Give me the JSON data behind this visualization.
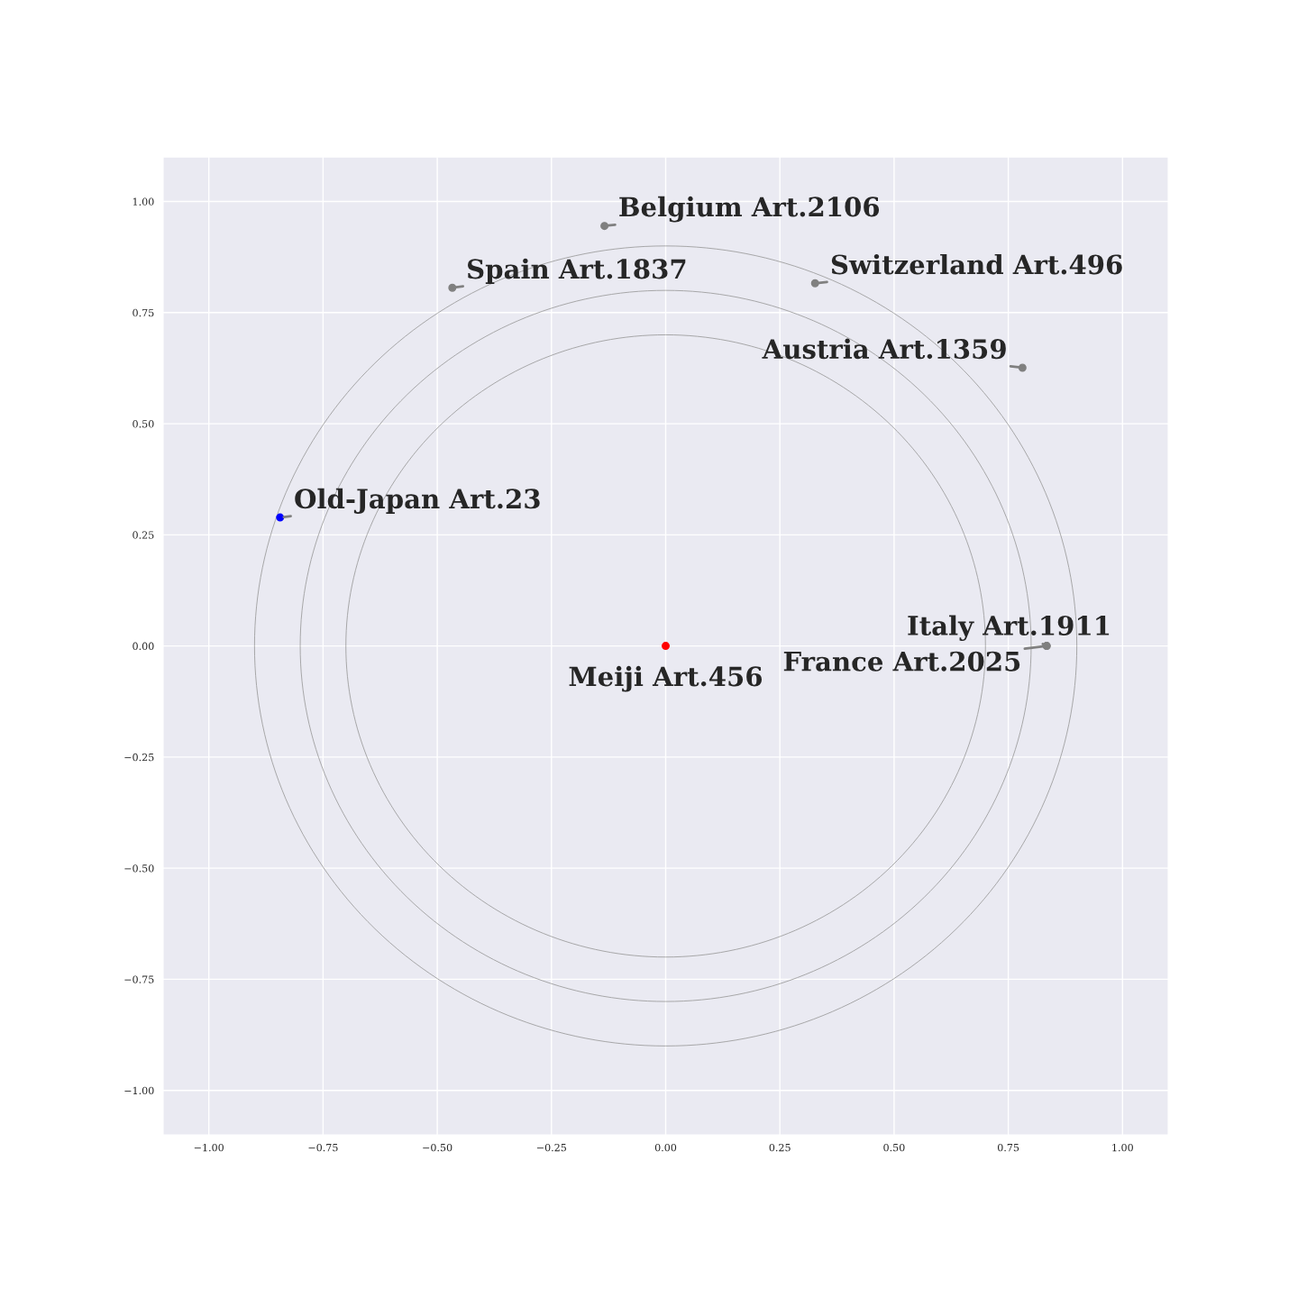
{
  "chart_data": {
    "type": "scatter",
    "grid": true,
    "marker": "circle",
    "xlim": [
      -1.1,
      1.1
    ],
    "ylim": [
      -1.1,
      1.1
    ],
    "xticks": [
      {
        "value": -1,
        "label": "−1.00"
      },
      {
        "value": -0.75,
        "label": "−0.75"
      },
      {
        "value": -0.5,
        "label": "−0.50"
      },
      {
        "value": -0.25,
        "label": "−0.25"
      },
      {
        "value": 0,
        "label": "0.00"
      },
      {
        "value": 0.25,
        "label": "0.25"
      },
      {
        "value": 0.5,
        "label": "0.50"
      },
      {
        "value": 0.75,
        "label": "0.75"
      },
      {
        "value": 1,
        "label": "1.00"
      }
    ],
    "yticks": [
      {
        "value": -1,
        "label": "−1.00"
      },
      {
        "value": -0.75,
        "label": "−0.75"
      },
      {
        "value": -0.5,
        "label": "−0.50"
      },
      {
        "value": -0.25,
        "label": "−0.25"
      },
      {
        "value": 0,
        "label": "0.00"
      },
      {
        "value": 0.25,
        "label": "0.25"
      },
      {
        "value": 0.5,
        "label": "0.50"
      },
      {
        "value": 0.75,
        "label": "0.75"
      },
      {
        "value": 1,
        "label": "1.00"
      }
    ],
    "series": [
      {
        "x": [
          0,
          -0.844,
          -0.467,
          -0.134,
          0.327,
          0.781,
          0.834,
          0.834
        ],
        "values": [
          0,
          0.289,
          0.806,
          0.945,
          0.816,
          0.626,
          0,
          0
        ],
        "colors": [
          "#ff0000",
          "#0000ff",
          "#808080",
          "#808080",
          "#808080",
          "#808080",
          "#808080",
          "#808080"
        ]
      }
    ],
    "annotations": [
      {
        "text": "Meiji Art.456",
        "x": 0,
        "y": 0
      },
      {
        "text": "Old-Japan Art.23",
        "x": -0.844,
        "y": 0.289
      },
      {
        "text": "Spain Art.1837",
        "x": -0.467,
        "y": 0.806
      },
      {
        "text": "Belgium Art.2106",
        "x": -0.134,
        "y": 0.945
      },
      {
        "text": "Switzerland Art.496",
        "x": 0.327,
        "y": 0.816
      },
      {
        "text": "Austria Art.1359",
        "x": 0.781,
        "y": 0.626
      },
      {
        "text": "Italy Art.1911",
        "x": 0.834,
        "y": 0
      },
      {
        "text": "France Art.2025",
        "x": 0.834,
        "y": 0
      }
    ]
  }
}
